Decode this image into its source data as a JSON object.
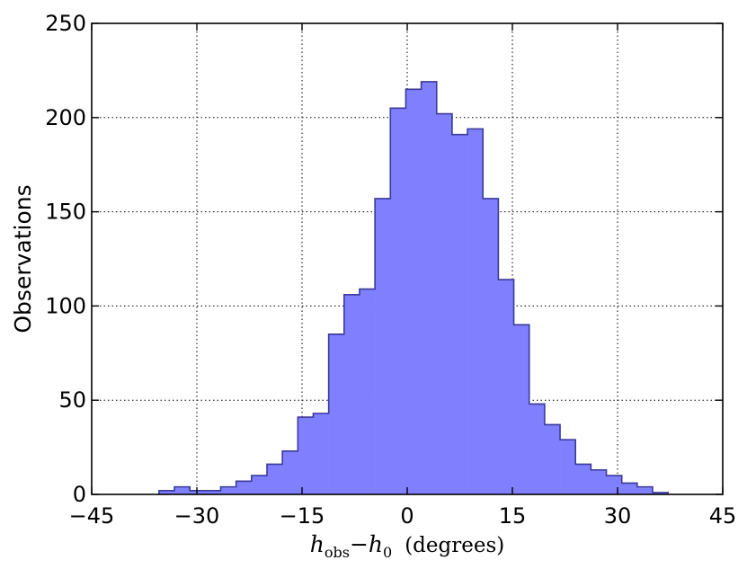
{
  "chart_data": {
    "type": "bar",
    "xlabel": {
      "h": "h",
      "obs": "obs",
      "minus": "−",
      "h0": "h",
      "zero": "0",
      "unit": "(degrees)"
    },
    "ylabel": "Observations",
    "xlim": [
      -45,
      45
    ],
    "ylim": [
      0,
      250
    ],
    "xticks": [
      -45,
      -30,
      -15,
      0,
      15,
      30,
      45
    ],
    "xtick_labels": [
      "−45",
      "−30",
      "−15",
      "0",
      "15",
      "30",
      "45"
    ],
    "yticks": [
      0,
      50,
      100,
      150,
      200,
      250
    ],
    "ytick_labels": [
      "0",
      "50",
      "100",
      "150",
      "200",
      "250"
    ],
    "grid": true,
    "grid_style": "dotted",
    "fill_color": "#8080ff",
    "edge_color": "#3a3a9a",
    "bin_edges": [
      -35.4,
      -33.2,
      -31.0,
      -28.8,
      -26.6,
      -24.4,
      -22.2,
      -20.0,
      -17.8,
      -15.6,
      -13.4,
      -11.2,
      -9.0,
      -6.8,
      -4.6,
      -2.4,
      -0.2,
      2.0,
      4.2,
      6.4,
      8.6,
      10.8,
      13.0,
      15.2,
      17.4,
      19.6,
      21.8,
      24.0,
      26.2,
      28.4,
      30.6,
      32.8,
      35.0,
      37.2
    ],
    "values": [
      2,
      4,
      2,
      2,
      4,
      7,
      10,
      16,
      23,
      41,
      43,
      85,
      106,
      109,
      157,
      205,
      215,
      219,
      202,
      191,
      194,
      157,
      114,
      90,
      48,
      37,
      29,
      16,
      13,
      10,
      6,
      4,
      1
    ]
  }
}
